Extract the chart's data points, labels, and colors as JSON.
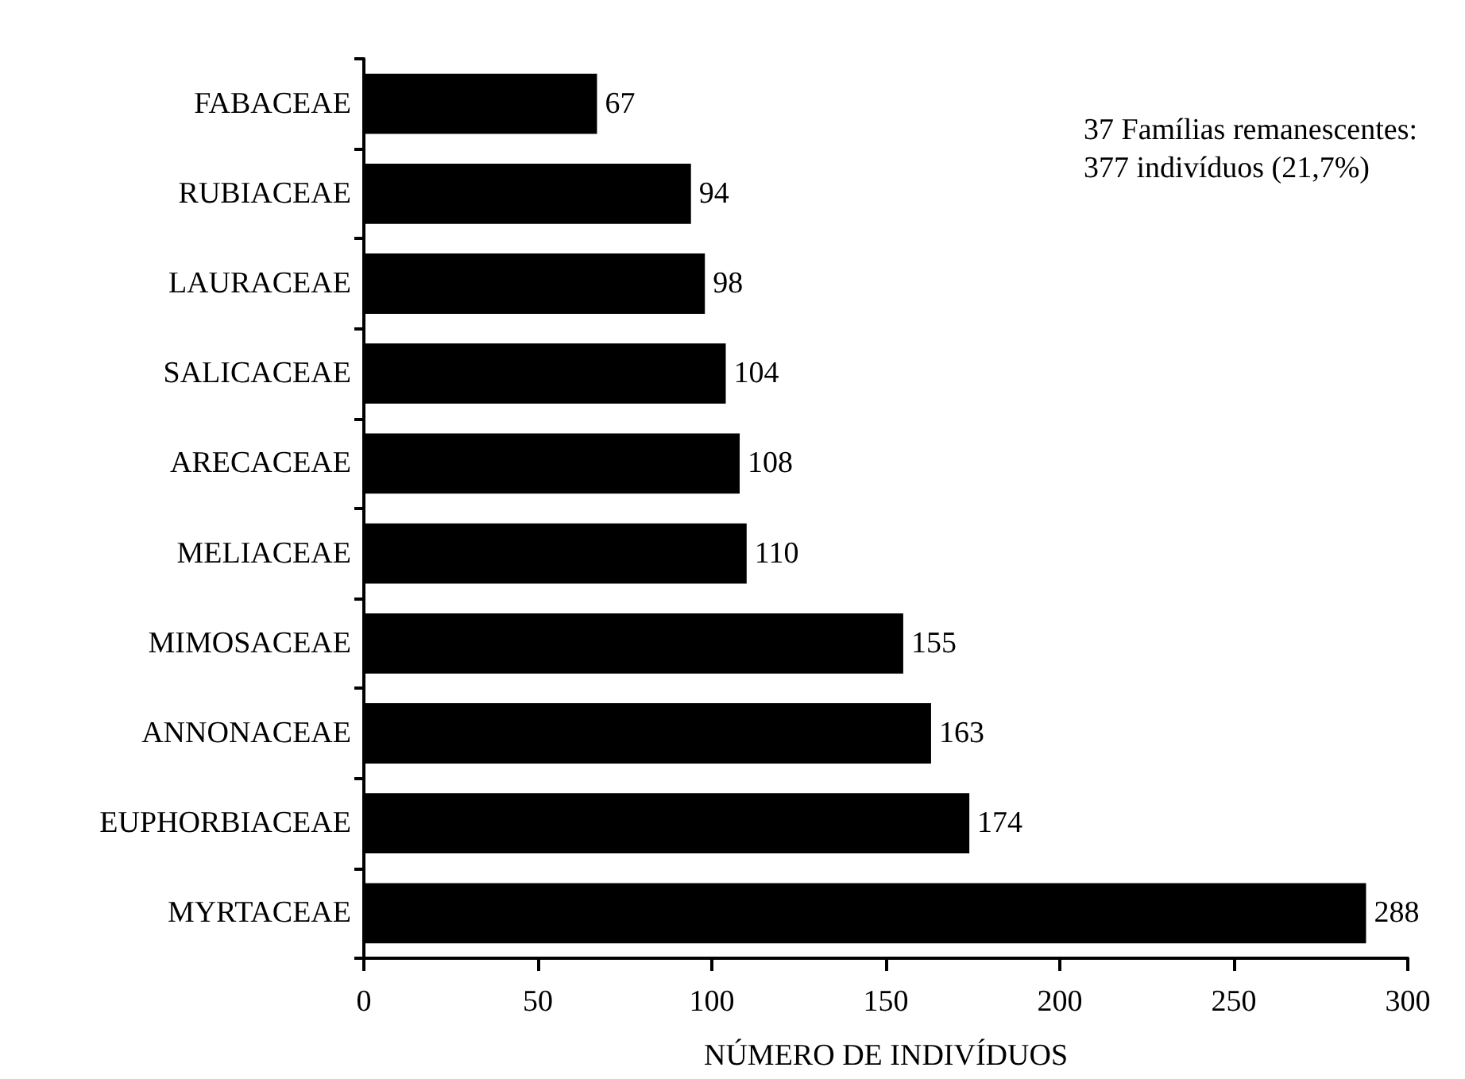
{
  "chart_data": {
    "type": "bar",
    "orientation": "horizontal",
    "xlabel": "NÚMERO DE INDIVÍDUOS",
    "categories": [
      "FABACEAE",
      "RUBIACEAE",
      "LAURACEAE",
      "SALICACEAE",
      "ARECACEAE",
      "MELIACEAE",
      "MIMOSACEAE",
      "ANNONACEAE",
      "EUPHORBIACEAE",
      "MYRTACEAE"
    ],
    "values": [
      67,
      94,
      98,
      104,
      108,
      110,
      155,
      163,
      174,
      288
    ],
    "color": "#000000",
    "xlim": [
      0,
      300
    ],
    "xticks": [
      0,
      50,
      100,
      150,
      200,
      250,
      300
    ],
    "grid": false,
    "data_labels": true,
    "annotations": [
      "37 Famílias remanescentes:\n377 indivíduos (21,7%)"
    ]
  }
}
